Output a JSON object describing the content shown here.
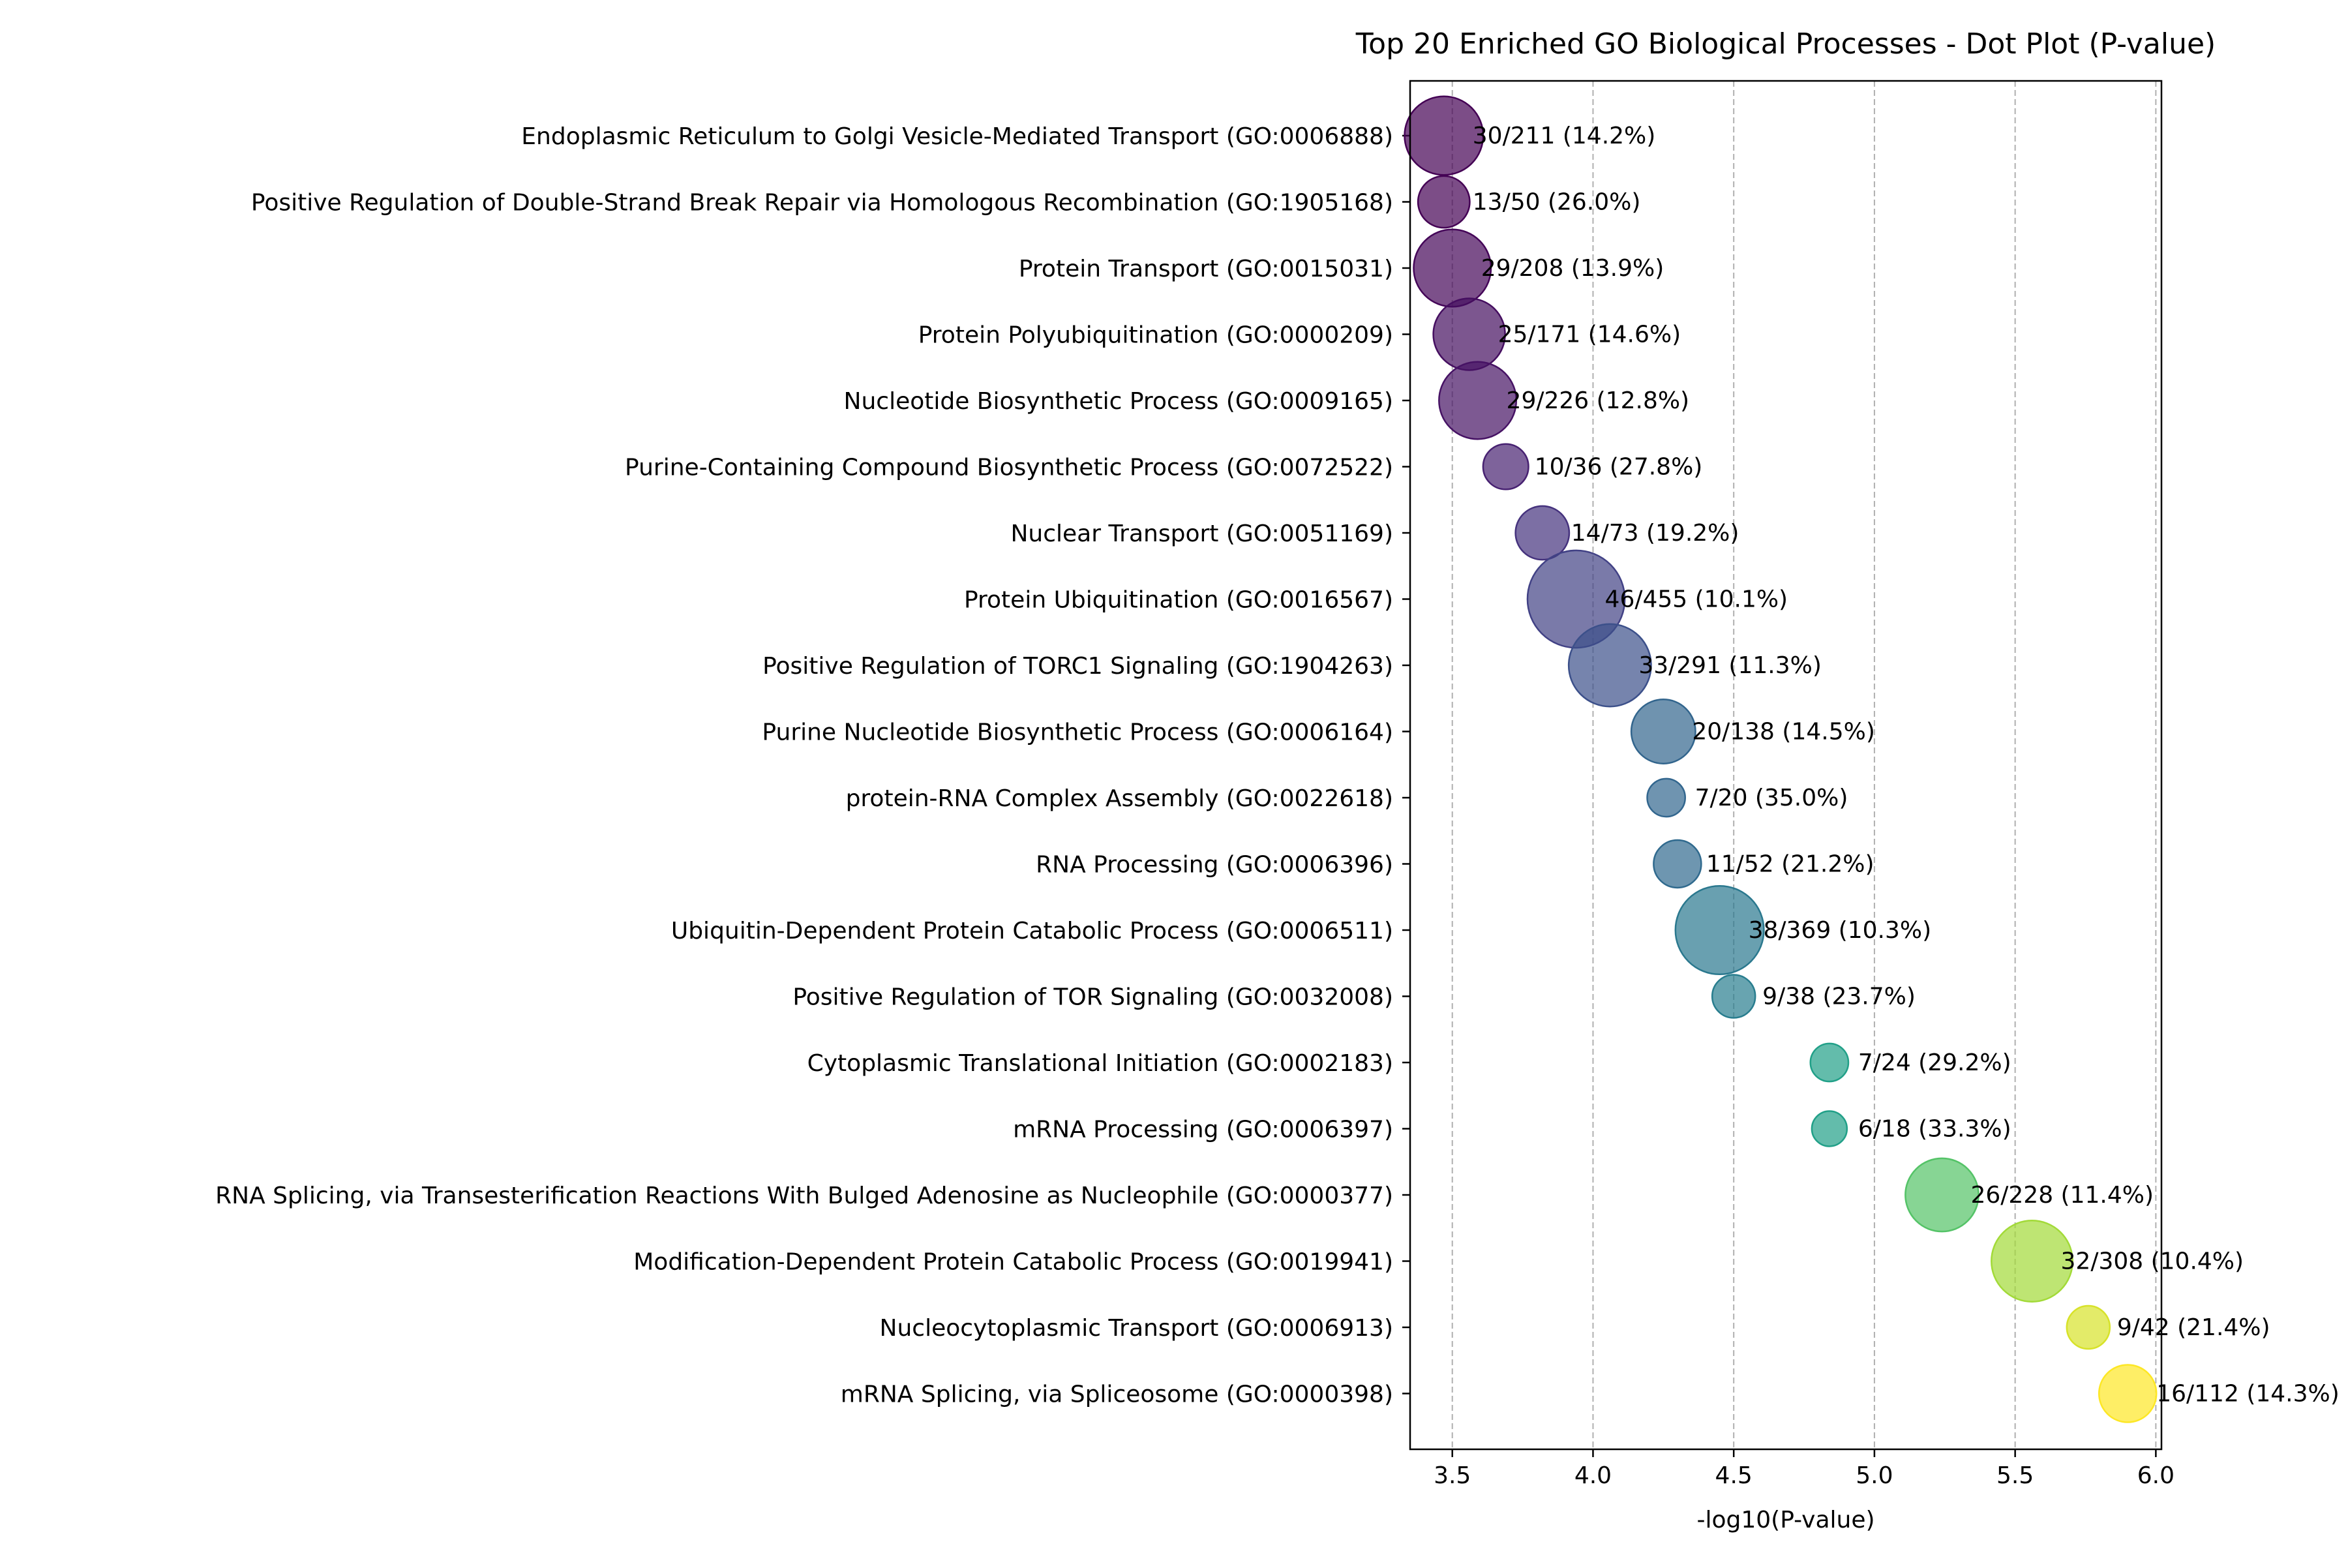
{
  "chart_data": {
    "type": "scatter",
    "title": "Top 20 Enriched GO Biological Processes - Dot Plot (P-value)",
    "xlabel": "-log10(P-value)",
    "ylabel": "",
    "xlim": [
      3.35,
      6.02
    ],
    "x_ticks": [
      "3.5",
      "4.0",
      "4.5",
      "5.0",
      "5.5",
      "6.0"
    ],
    "grid": "vertical dashed",
    "colormap": "viridis",
    "points": [
      {
        "term": "Endoplasmic Reticulum to Golgi Vesicle-Mediated Transport (GO:0006888)",
        "x": 3.47,
        "overlap": "30/211 (14.2%)",
        "count": 30
      },
      {
        "term": "Positive Regulation of Double-Strand Break Repair via Homologous Recombination (GO:1905168)",
        "x": 3.47,
        "overlap": "13/50 (26.0%)",
        "count": 13
      },
      {
        "term": "Protein Transport (GO:0015031)",
        "x": 3.5,
        "overlap": "29/208 (13.9%)",
        "count": 29
      },
      {
        "term": "Protein Polyubiquitination (GO:0000209)",
        "x": 3.56,
        "overlap": "25/171 (14.6%)",
        "count": 25
      },
      {
        "term": "Nucleotide Biosynthetic Process (GO:0009165)",
        "x": 3.59,
        "overlap": "29/226 (12.8%)",
        "count": 29
      },
      {
        "term": "Purine-Containing Compound Biosynthetic Process (GO:0072522)",
        "x": 3.69,
        "overlap": "10/36 (27.8%)",
        "count": 10
      },
      {
        "term": "Nuclear Transport (GO:0051169)",
        "x": 3.82,
        "overlap": "14/73 (19.2%)",
        "count": 14
      },
      {
        "term": "Protein Ubiquitination (GO:0016567)",
        "x": 3.94,
        "overlap": "46/455 (10.1%)",
        "count": 46
      },
      {
        "term": "Positive Regulation of TORC1 Signaling (GO:1904263)",
        "x": 4.06,
        "overlap": "33/291 (11.3%)",
        "count": 33
      },
      {
        "term": "Purine Nucleotide Biosynthetic Process (GO:0006164)",
        "x": 4.25,
        "overlap": "20/138 (14.5%)",
        "count": 20
      },
      {
        "term": "protein-RNA Complex Assembly (GO:0022618)",
        "x": 4.26,
        "overlap": "7/20 (35.0%)",
        "count": 7
      },
      {
        "term": "RNA Processing (GO:0006396)",
        "x": 4.3,
        "overlap": "11/52 (21.2%)",
        "count": 11
      },
      {
        "term": "Ubiquitin-Dependent Protein Catabolic Process (GO:0006511)",
        "x": 4.45,
        "overlap": "38/369 (10.3%)",
        "count": 38
      },
      {
        "term": "Positive Regulation of TOR Signaling (GO:0032008)",
        "x": 4.5,
        "overlap": "9/38 (23.7%)",
        "count": 9
      },
      {
        "term": "Cytoplasmic Translational Initiation (GO:0002183)",
        "x": 4.84,
        "overlap": "7/24 (29.2%)",
        "count": 7
      },
      {
        "term": "mRNA Processing (GO:0006397)",
        "x": 4.84,
        "overlap": "6/18 (33.3%)",
        "count": 6
      },
      {
        "term": "RNA Splicing, via Transesterification Reactions With Bulged Adenosine as Nucleophile (GO:0000377)",
        "x": 5.24,
        "overlap": "26/228 (11.4%)",
        "count": 26
      },
      {
        "term": "Modification-Dependent Protein Catabolic Process (GO:0019941)",
        "x": 5.56,
        "overlap": "32/308 (10.4%)",
        "count": 32
      },
      {
        "term": "Nucleocytoplasmic Transport (GO:0006913)",
        "x": 5.76,
        "overlap": "9/42 (21.4%)",
        "count": 9
      },
      {
        "term": "mRNA Splicing, via Spliceosome (GO:0000398)",
        "x": 5.9,
        "overlap": "16/112 (14.3%)",
        "count": 16
      }
    ]
  }
}
